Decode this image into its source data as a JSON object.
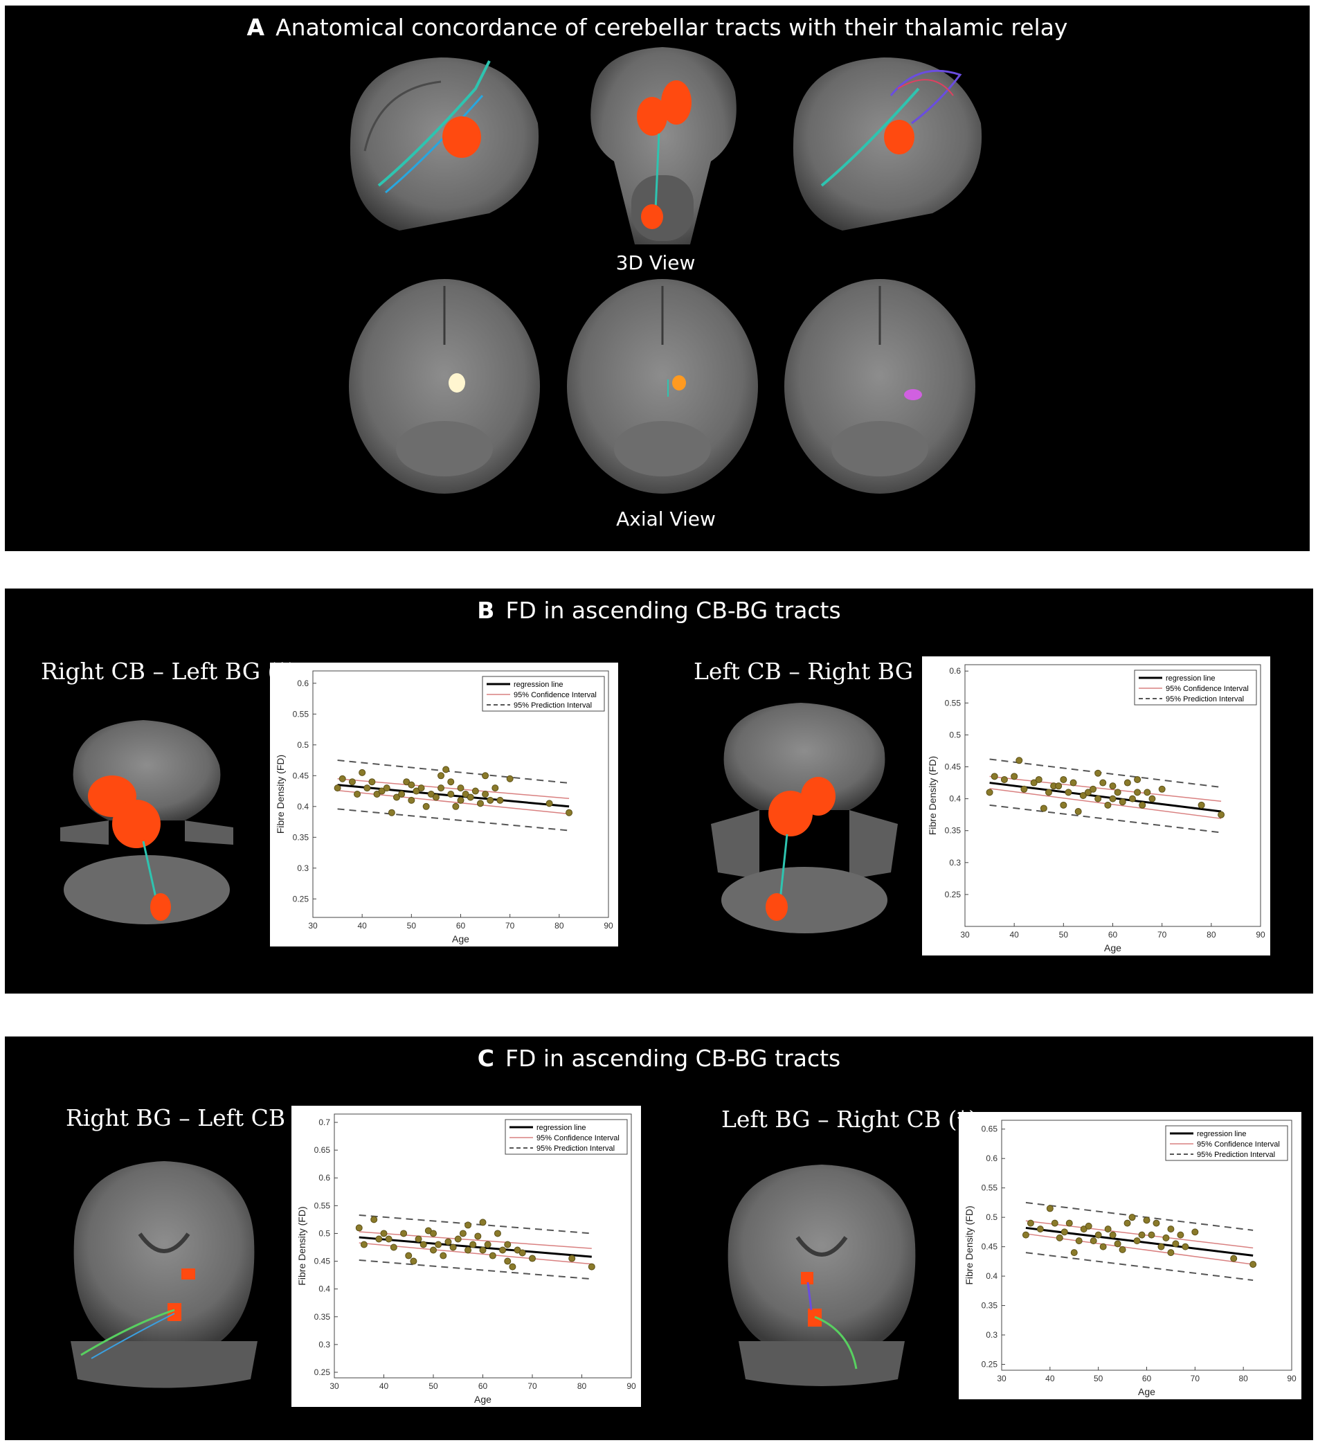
{
  "panels": {
    "a": {
      "letter": "A",
      "title": "Anatomical concordance of cerebellar tracts with their thalamic relay",
      "view_3d": "3D View",
      "view_axial": "Axial View"
    },
    "b": {
      "letter": "B",
      "title": "FD in ascending CB-BG tracts",
      "left_label": "Right CB – Left BG (*)",
      "right_label": "Left CB – Right BG (*)"
    },
    "c": {
      "letter": "C",
      "title": "FD in ascending CB-BG tracts",
      "left_label": "Right BG – Left CB (*)",
      "right_label": "Left BG – Right CB (*)"
    }
  },
  "legend": {
    "regression": "regression line",
    "confidence": "95% Confidence Interval",
    "prediction": "95% Prediction Interval"
  },
  "colors": {
    "background": "#000000",
    "regression": "#000000",
    "confidence": "#d98080",
    "prediction": "#555555",
    "points": "#8a7a2a",
    "lesion": "#ff4a10"
  },
  "chart_data": [
    {
      "id": "b-left",
      "type": "scatter",
      "xlabel": "Age",
      "ylabel": "Fibre Density (FD)",
      "xlim": [
        30,
        90
      ],
      "ylim": [
        0.22,
        0.62
      ],
      "xticks": [
        30,
        40,
        50,
        60,
        70,
        80,
        90
      ],
      "yticks": [
        0.25,
        0.3,
        0.35,
        0.4,
        0.45,
        0.5,
        0.55,
        0.6
      ],
      "regression": [
        [
          35,
          0.435
        ],
        [
          82,
          0.4
        ]
      ],
      "ci_upper": [
        [
          35,
          0.445
        ],
        [
          82,
          0.413
        ]
      ],
      "ci_lower": [
        [
          35,
          0.426
        ],
        [
          82,
          0.388
        ]
      ],
      "pi_upper": [
        [
          35,
          0.475
        ],
        [
          82,
          0.438
        ]
      ],
      "pi_lower": [
        [
          35,
          0.396
        ],
        [
          82,
          0.361
        ]
      ],
      "points": [
        [
          35,
          0.43
        ],
        [
          36,
          0.445
        ],
        [
          38,
          0.44
        ],
        [
          39,
          0.42
        ],
        [
          40,
          0.455
        ],
        [
          41,
          0.43
        ],
        [
          42,
          0.44
        ],
        [
          43,
          0.42
        ],
        [
          44,
          0.425
        ],
        [
          45,
          0.43
        ],
        [
          46,
          0.39
        ],
        [
          47,
          0.415
        ],
        [
          48,
          0.42
        ],
        [
          49,
          0.44
        ],
        [
          50,
          0.435
        ],
        [
          50,
          0.41
        ],
        [
          51,
          0.425
        ],
        [
          52,
          0.43
        ],
        [
          53,
          0.4
        ],
        [
          54,
          0.42
        ],
        [
          55,
          0.415
        ],
        [
          56,
          0.45
        ],
        [
          56,
          0.43
        ],
        [
          57,
          0.46
        ],
        [
          58,
          0.44
        ],
        [
          58,
          0.42
        ],
        [
          59,
          0.4
        ],
        [
          60,
          0.43
        ],
        [
          60,
          0.41
        ],
        [
          61,
          0.42
        ],
        [
          62,
          0.415
        ],
        [
          63,
          0.425
        ],
        [
          64,
          0.405
        ],
        [
          65,
          0.45
        ],
        [
          65,
          0.42
        ],
        [
          66,
          0.41
        ],
        [
          67,
          0.43
        ],
        [
          68,
          0.41
        ],
        [
          70,
          0.445
        ],
        [
          78,
          0.405
        ],
        [
          82,
          0.39
        ]
      ]
    },
    {
      "id": "b-right",
      "type": "scatter",
      "xlabel": "Age",
      "ylabel": "Fibre Density (FD)",
      "xlim": [
        30,
        90
      ],
      "ylim": [
        0.2,
        0.61
      ],
      "xticks": [
        30,
        40,
        50,
        60,
        70,
        80,
        90
      ],
      "yticks": [
        0.25,
        0.3,
        0.35,
        0.4,
        0.45,
        0.5,
        0.55,
        0.6
      ],
      "regression": [
        [
          35,
          0.425
        ],
        [
          82,
          0.38
        ]
      ],
      "ci_upper": [
        [
          35,
          0.435
        ],
        [
          82,
          0.396
        ]
      ],
      "ci_lower": [
        [
          35,
          0.416
        ],
        [
          82,
          0.369
        ]
      ],
      "pi_upper": [
        [
          35,
          0.462
        ],
        [
          82,
          0.418
        ]
      ],
      "pi_lower": [
        [
          35,
          0.39
        ],
        [
          82,
          0.347
        ]
      ],
      "points": [
        [
          35,
          0.41
        ],
        [
          36,
          0.435
        ],
        [
          38,
          0.43
        ],
        [
          40,
          0.435
        ],
        [
          41,
          0.46
        ],
        [
          42,
          0.415
        ],
        [
          44,
          0.425
        ],
        [
          45,
          0.43
        ],
        [
          46,
          0.385
        ],
        [
          47,
          0.41
        ],
        [
          48,
          0.42
        ],
        [
          49,
          0.42
        ],
        [
          50,
          0.39
        ],
        [
          50,
          0.43
        ],
        [
          51,
          0.41
        ],
        [
          52,
          0.425
        ],
        [
          53,
          0.38
        ],
        [
          54,
          0.405
        ],
        [
          55,
          0.41
        ],
        [
          56,
          0.415
        ],
        [
          57,
          0.44
        ],
        [
          57,
          0.4
        ],
        [
          58,
          0.425
        ],
        [
          59,
          0.39
        ],
        [
          60,
          0.42
        ],
        [
          60,
          0.4
        ],
        [
          61,
          0.41
        ],
        [
          62,
          0.395
        ],
        [
          63,
          0.425
        ],
        [
          64,
          0.4
        ],
        [
          65,
          0.43
        ],
        [
          65,
          0.41
        ],
        [
          66,
          0.39
        ],
        [
          67,
          0.41
        ],
        [
          68,
          0.4
        ],
        [
          70,
          0.415
        ],
        [
          78,
          0.39
        ],
        [
          82,
          0.375
        ]
      ]
    },
    {
      "id": "c-left",
      "type": "scatter",
      "xlabel": "Age",
      "ylabel": "Fibre Density (FD)",
      "xlim": [
        30,
        90
      ],
      "ylim": [
        0.24,
        0.715
      ],
      "xticks": [
        30,
        40,
        50,
        60,
        70,
        80,
        90
      ],
      "yticks": [
        0.25,
        0.3,
        0.35,
        0.4,
        0.45,
        0.5,
        0.55,
        0.6,
        0.65,
        0.7
      ],
      "regression": [
        [
          35,
          0.493
        ],
        [
          82,
          0.458
        ]
      ],
      "ci_upper": [
        [
          35,
          0.503
        ],
        [
          82,
          0.473
        ]
      ],
      "ci_lower": [
        [
          35,
          0.483
        ],
        [
          82,
          0.445
        ]
      ],
      "pi_upper": [
        [
          35,
          0.533
        ],
        [
          82,
          0.5
        ]
      ],
      "pi_lower": [
        [
          35,
          0.452
        ],
        [
          82,
          0.418
        ]
      ],
      "points": [
        [
          35,
          0.51
        ],
        [
          36,
          0.48
        ],
        [
          38,
          0.525
        ],
        [
          39,
          0.49
        ],
        [
          40,
          0.5
        ],
        [
          41,
          0.49
        ],
        [
          42,
          0.475
        ],
        [
          44,
          0.5
        ],
        [
          45,
          0.46
        ],
        [
          46,
          0.45
        ],
        [
          47,
          0.49
        ],
        [
          48,
          0.48
        ],
        [
          49,
          0.505
        ],
        [
          50,
          0.47
        ],
        [
          50,
          0.5
        ],
        [
          51,
          0.48
        ],
        [
          52,
          0.46
        ],
        [
          53,
          0.485
        ],
        [
          54,
          0.475
        ],
        [
          55,
          0.49
        ],
        [
          56,
          0.5
        ],
        [
          57,
          0.515
        ],
        [
          57,
          0.47
        ],
        [
          58,
          0.48
        ],
        [
          59,
          0.495
        ],
        [
          60,
          0.52
        ],
        [
          60,
          0.47
        ],
        [
          61,
          0.48
        ],
        [
          62,
          0.46
        ],
        [
          63,
          0.5
        ],
        [
          64,
          0.47
        ],
        [
          65,
          0.48
        ],
        [
          65,
          0.45
        ],
        [
          66,
          0.44
        ],
        [
          67,
          0.47
        ],
        [
          68,
          0.465
        ],
        [
          70,
          0.455
        ],
        [
          78,
          0.455
        ],
        [
          82,
          0.44
        ]
      ]
    },
    {
      "id": "c-right",
      "type": "scatter",
      "xlabel": "Age",
      "ylabel": "Fibre Density (FD)",
      "xlim": [
        30,
        90
      ],
      "ylim": [
        0.24,
        0.665
      ],
      "xticks": [
        30,
        40,
        50,
        60,
        70,
        80,
        90
      ],
      "yticks": [
        0.25,
        0.3,
        0.35,
        0.4,
        0.45,
        0.5,
        0.55,
        0.6,
        0.65
      ],
      "regression": [
        [
          35,
          0.482
        ],
        [
          82,
          0.435
        ]
      ],
      "ci_upper": [
        [
          35,
          0.494
        ],
        [
          82,
          0.448
        ]
      ],
      "ci_lower": [
        [
          35,
          0.472
        ],
        [
          82,
          0.42
        ]
      ],
      "pi_upper": [
        [
          35,
          0.525
        ],
        [
          82,
          0.478
        ]
      ],
      "pi_lower": [
        [
          35,
          0.44
        ],
        [
          82,
          0.393
        ]
      ],
      "points": [
        [
          35,
          0.47
        ],
        [
          36,
          0.49
        ],
        [
          38,
          0.48
        ],
        [
          40,
          0.515
        ],
        [
          41,
          0.49
        ],
        [
          42,
          0.465
        ],
        [
          43,
          0.475
        ],
        [
          44,
          0.49
        ],
        [
          45,
          0.44
        ],
        [
          46,
          0.46
        ],
        [
          47,
          0.48
        ],
        [
          48,
          0.485
        ],
        [
          49,
          0.46
        ],
        [
          50,
          0.47
        ],
        [
          51,
          0.45
        ],
        [
          52,
          0.48
        ],
        [
          53,
          0.47
        ],
        [
          54,
          0.455
        ],
        [
          55,
          0.445
        ],
        [
          56,
          0.49
        ],
        [
          57,
          0.5
        ],
        [
          58,
          0.46
        ],
        [
          59,
          0.47
        ],
        [
          60,
          0.495
        ],
        [
          61,
          0.47
        ],
        [
          62,
          0.49
        ],
        [
          63,
          0.45
        ],
        [
          64,
          0.465
        ],
        [
          65,
          0.48
        ],
        [
          65,
          0.44
        ],
        [
          66,
          0.455
        ],
        [
          67,
          0.47
        ],
        [
          68,
          0.45
        ],
        [
          70,
          0.475
        ],
        [
          78,
          0.43
        ],
        [
          82,
          0.42
        ]
      ]
    }
  ]
}
